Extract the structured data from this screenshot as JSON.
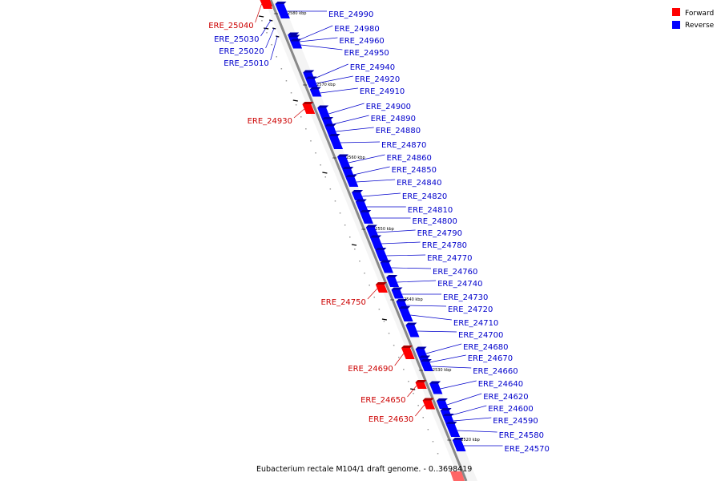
{
  "caption": "Eubacterium rectale M104/1 draft genome. - 0..3698419",
  "legend": [
    {
      "label": "Forward",
      "color": "#ff0000"
    },
    {
      "label": "Reverse",
      "color": "#0000ff"
    }
  ],
  "colors": {
    "forward": "#ff0000",
    "reverse": "#0000ff",
    "forward_label": "#cc0000",
    "reverse_label": "#0000cc",
    "backbone": "#888888"
  },
  "ticks": [
    "2580 kbp",
    "2570 kbp",
    "2560 kbp",
    "2550 kbp",
    "2540 kbp",
    "2530 kbp",
    "2520 kbp"
  ],
  "forward_genes": [
    "ERE_25040",
    "ERE_25030",
    "ERE_25020",
    "ERE_25010",
    "ERE_24930",
    "ERE_24750",
    "ERE_24690",
    "ERE_24650",
    "ERE_24630"
  ],
  "reverse_genes": [
    "ERE_24990",
    "ERE_24980",
    "ERE_24960",
    "ERE_24950",
    "ERE_24940",
    "ERE_24920",
    "ERE_24910",
    "ERE_24900",
    "ERE_24890",
    "ERE_24880",
    "ERE_24870",
    "ERE_24860",
    "ERE_24850",
    "ERE_24840",
    "ERE_24820",
    "ERE_24810",
    "ERE_24800",
    "ERE_24790",
    "ERE_24780",
    "ERE_24770",
    "ERE_24760",
    "ERE_24740",
    "ERE_24730",
    "ERE_24720",
    "ERE_24710",
    "ERE_24700",
    "ERE_24680",
    "ERE_24670",
    "ERE_24660",
    "ERE_24640",
    "ERE_24620",
    "ERE_24600",
    "ERE_24590",
    "ERE_24580",
    "ERE_24570"
  ]
}
